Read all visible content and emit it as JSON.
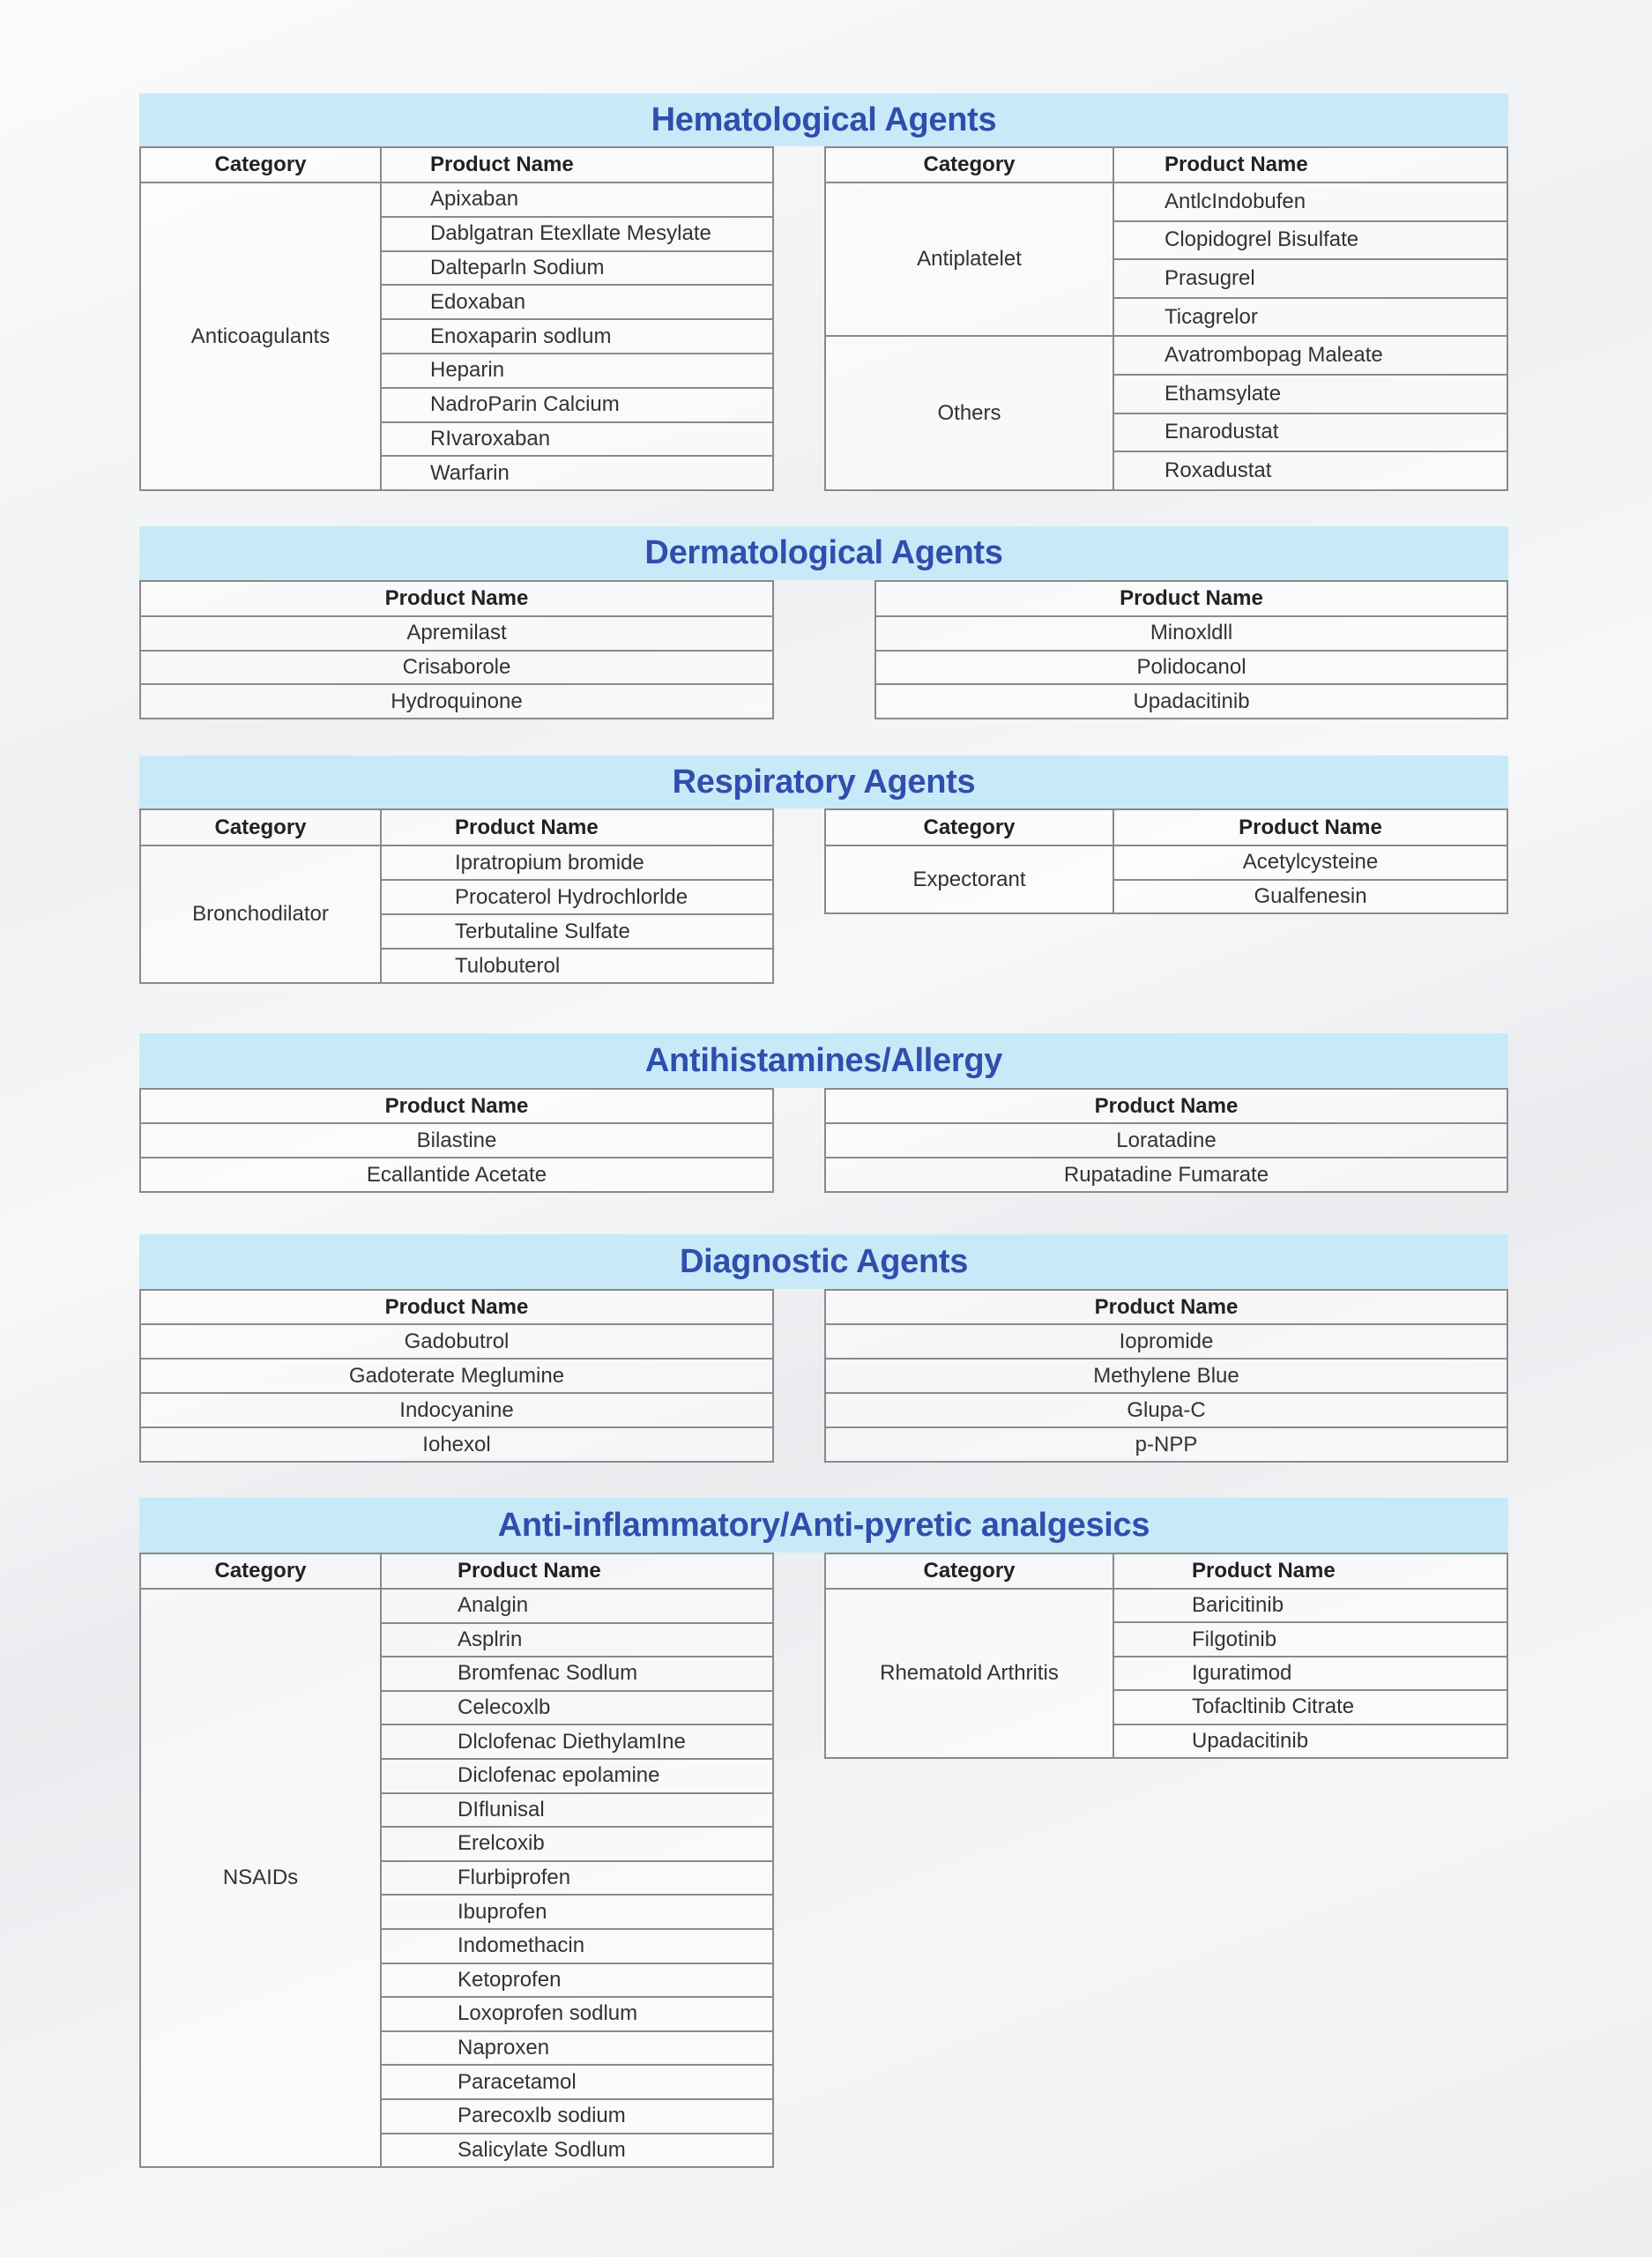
{
  "sections": [
    {
      "title": "Hematological Agents",
      "tables": [
        {
          "headers": [
            "Category",
            "Product Name"
          ],
          "groups": [
            {
              "category": "Anticoagulants",
              "items": [
                "Apixaban",
                "Dablgatran Etexllate Mesylate",
                "Dalteparln Sodium",
                "Edoxaban",
                "Enoxaparin sodlum",
                "Heparin",
                "NadroParin Calcium",
                "RIvaroxaban",
                "Warfarin"
              ]
            }
          ]
        },
        {
          "headers": [
            "Category",
            "Product Name"
          ],
          "groups": [
            {
              "category": "Antiplatelet",
              "items": [
                "AntlcIndobufen",
                "Clopidogrel Bisulfate",
                "Prasugrel",
                "Ticagrelor"
              ]
            },
            {
              "category": "Others",
              "items": [
                "Avatrombopag Maleate",
                "Ethamsylate",
                "Enarodustat",
                "Roxadustat"
              ]
            }
          ]
        }
      ]
    },
    {
      "title": "Dermatological Agents",
      "tables": [
        {
          "headers": [
            "Product Name"
          ],
          "groups": [
            {
              "items": [
                "Apremilast",
                "Crisaborole",
                "Hydroquinone"
              ]
            }
          ]
        },
        {
          "headers": [
            "Product  Name"
          ],
          "groups": [
            {
              "items": [
                "Minoxldll",
                "Polidocanol",
                "Upadacitinib"
              ]
            }
          ]
        }
      ]
    },
    {
      "title": "Respiratory Agents",
      "tables": [
        {
          "headers": [
            "Category",
            "Product Name"
          ],
          "groups": [
            {
              "category": "Bronchodilator",
              "items": [
                "Ipratropium bromide",
                "Procaterol Hydrochlorlde",
                "Terbutaline Sulfate",
                "Tulobuterol"
              ]
            }
          ]
        },
        {
          "headers": [
            "Category",
            "Product Name"
          ],
          "groups": [
            {
              "category": "Expectorant",
              "items": [
                "Acetylcysteine",
                "Gualfenesin"
              ]
            }
          ]
        }
      ]
    },
    {
      "title": "Antihistamines/Allergy",
      "tables": [
        {
          "headers": [
            "Product Name"
          ],
          "groups": [
            {
              "items": [
                "Bilastine",
                "Ecallantide Acetate"
              ]
            }
          ]
        },
        {
          "headers": [
            "Product Name"
          ],
          "groups": [
            {
              "items": [
                "Loratadine",
                "Rupatadine Fumarate"
              ]
            }
          ]
        }
      ]
    },
    {
      "title": "Diagnostic Agents",
      "tables": [
        {
          "headers": [
            "Product Name"
          ],
          "groups": [
            {
              "items": [
                "Gadobutrol",
                "Gadoterate Meglumine",
                "Indocyanine",
                "Iohexol"
              ]
            }
          ]
        },
        {
          "headers": [
            "Product Name"
          ],
          "groups": [
            {
              "items": [
                "Iopromide",
                "Methylene Blue",
                "Glupa-C",
                "p-NPP"
              ]
            }
          ]
        }
      ]
    },
    {
      "title": "Anti-inflammatory/Anti-pyretic analgesics",
      "tables": [
        {
          "headers": [
            "Category",
            "Product Name"
          ],
          "groups": [
            {
              "category": "NSAIDs",
              "items": [
                "Analgin",
                "Asplrin",
                "Bromfenac Sodlum",
                "Celecoxlb",
                "Dlclofenac DiethylamIne",
                "Diclofenac epolamine",
                "DIflunisal",
                "Erelcoxib",
                "Flurbiprofen",
                "Ibuprofen",
                "Indomethacin",
                "Ketoprofen",
                "Loxoprofen sodlum",
                "Naproxen",
                "Paracetamol",
                "Parecoxlb sodium",
                "Salicylate Sodlum"
              ]
            }
          ]
        },
        {
          "headers": [
            "Category",
            "Product Name"
          ],
          "groups": [
            {
              "category": "Rhematold Arthritis",
              "items": [
                "Baricitinib",
                "Filgotinib",
                "Iguratimod",
                "Tofacltinib Citrate",
                "Upadacitinib"
              ]
            }
          ]
        }
      ]
    }
  ]
}
